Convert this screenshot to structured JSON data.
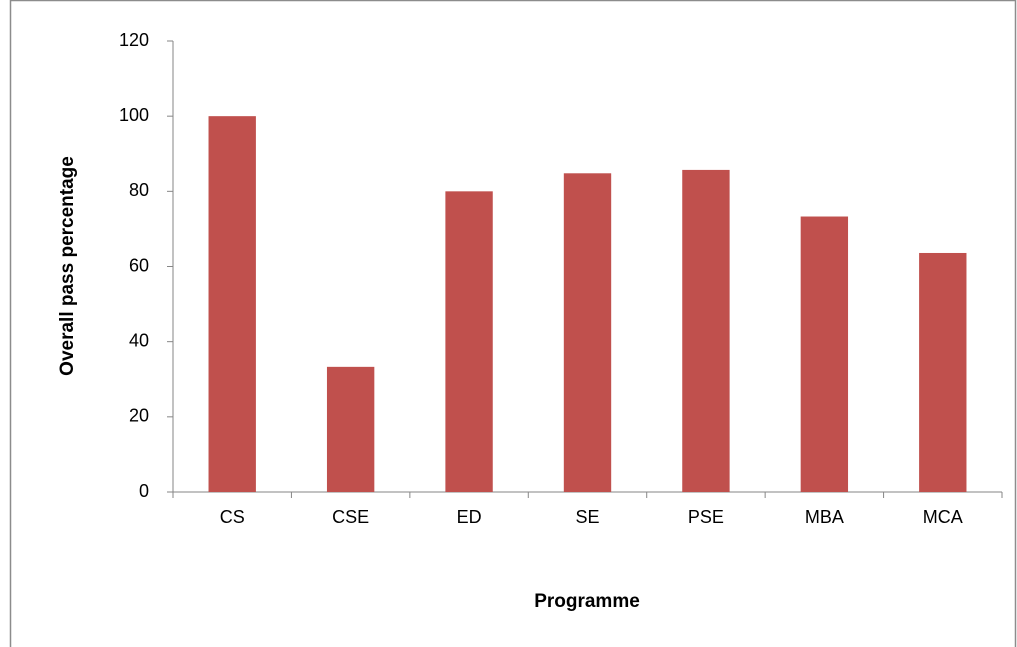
{
  "chart_data": {
    "type": "bar",
    "x_label": "Programme",
    "y_label": "Overall pass percentage",
    "categories": [
      "CS",
      "CSE",
      "ED",
      "SE",
      "PSE",
      "MBA",
      "MCA"
    ],
    "values": [
      100,
      33.3,
      80,
      84.8,
      85.7,
      73.3,
      63.6
    ],
    "color": "#c0504d",
    "ylim": [
      0,
      120
    ],
    "yticks": [
      0,
      20,
      40,
      60,
      80,
      100,
      120
    ],
    "grid": false
  }
}
